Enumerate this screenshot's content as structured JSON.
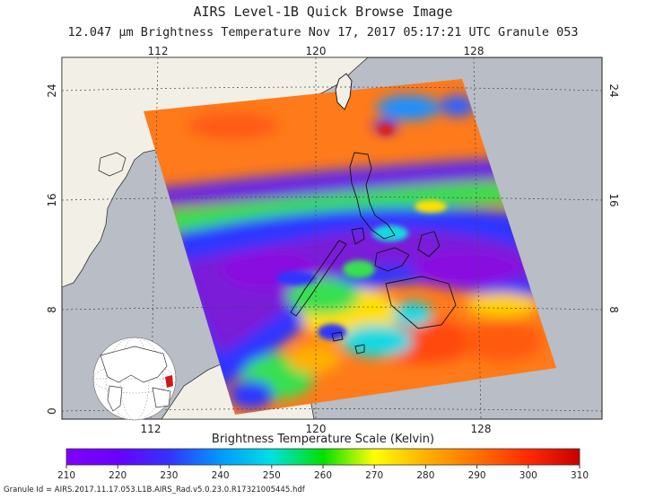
{
  "header": {
    "title": "AIRS Level-1B Quick Browse Image",
    "subtitle": "12.047 µm Brightness Temperature    Nov 17, 2017 05:17:21 UTC   Granule 053"
  },
  "map": {
    "lon_ticks": [
      "112",
      "120",
      "128"
    ],
    "lat_ticks": [
      "24",
      "16",
      "8",
      "0"
    ],
    "colors": {
      "ocean": "#b8bdc6",
      "land": "#f2efe6",
      "swath_warm": "#ff7a1a",
      "swath_cold": "#7a1fd8"
    }
  },
  "colorbar": {
    "title": "Brightness Temperature Scale (Kelvin)",
    "ticks": [
      "210",
      "220",
      "230",
      "240",
      "250",
      "260",
      "270",
      "280",
      "290",
      "300",
      "310"
    ],
    "stops": [
      "#8000ff",
      "#6a00ff",
      "#3333ff",
      "#0099ff",
      "#00e0e0",
      "#00e000",
      "#ffff00",
      "#ffb000",
      "#ff7000",
      "#ff2a00",
      "#c80000"
    ]
  },
  "footer": {
    "granule_id": "Granule Id = AIRS.2017.11.17.053.L1B.AIRS_Rad.v5.0.23.0.R17321005445.hdf"
  }
}
